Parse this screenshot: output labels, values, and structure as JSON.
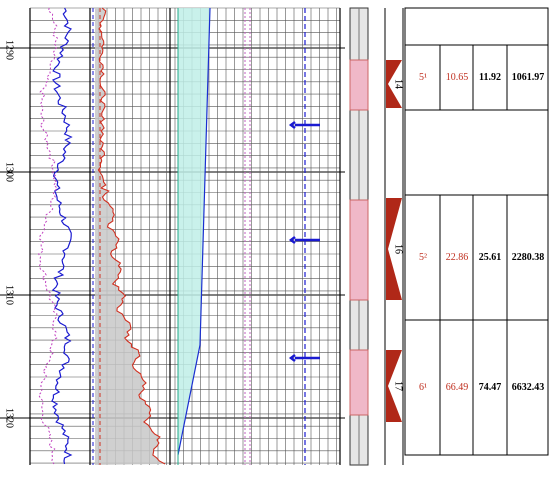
{
  "depth_labels": [
    "1290",
    "1300",
    "1310",
    "1320"
  ],
  "layers": [
    {
      "number": "14",
      "zone": "5¹",
      "porosity": "10.65",
      "thickness": "11.92",
      "volume": "1061.97"
    },
    {
      "number": "16",
      "zone": "5²",
      "porosity": "22.86",
      "thickness": "25.61",
      "volume": "2280.38"
    },
    {
      "number": "17",
      "zone": "6¹",
      "porosity": "66.49",
      "thickness": "74.47",
      "volume": "6632.43"
    }
  ]
}
